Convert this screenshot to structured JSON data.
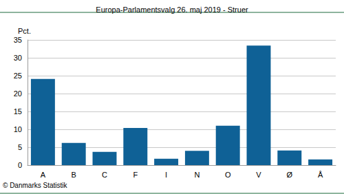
{
  "chart_data": {
    "type": "bar",
    "title": "Europa-Parlamentsvalg 26. maj 2019 - Struer",
    "y_label": "Pct.",
    "source": "© Danmarks Statistik",
    "categories": [
      "A",
      "B",
      "C",
      "F",
      "I",
      "N",
      "O",
      "V",
      "Ø",
      "Å"
    ],
    "values": [
      24.1,
      6.2,
      3.7,
      10.4,
      1.8,
      4.0,
      11.0,
      33.4,
      4.1,
      1.6
    ],
    "color": "#0f6196",
    "ylim": [
      0,
      35
    ],
    "yticks": [
      0,
      5,
      10,
      15,
      20,
      25,
      30,
      35
    ],
    "grid": true
  }
}
